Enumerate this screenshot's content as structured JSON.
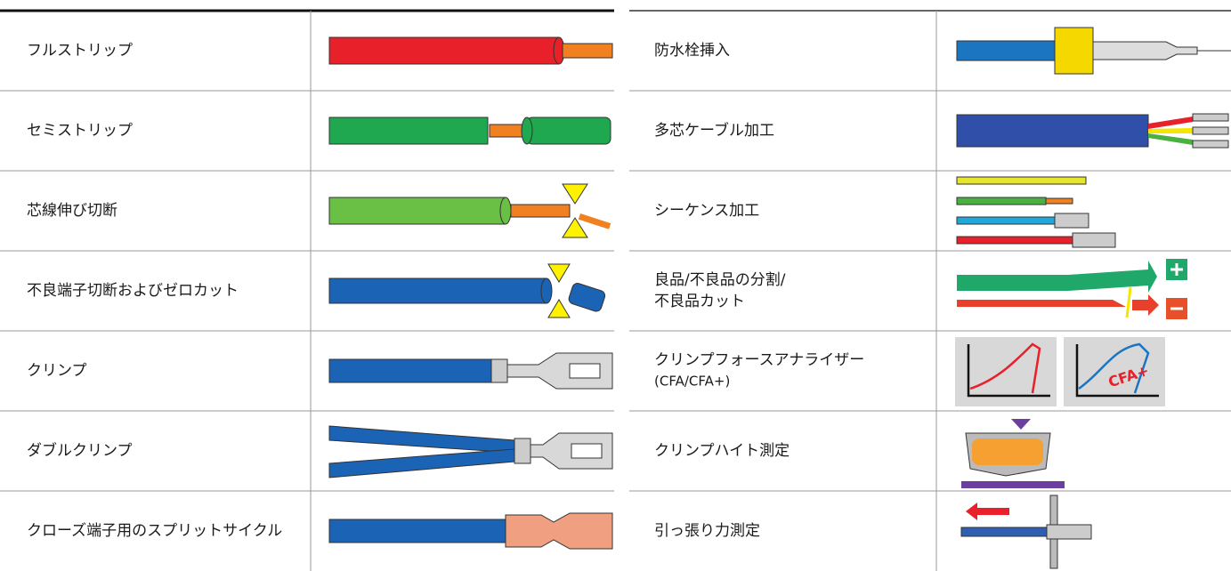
{
  "left": {
    "rows": [
      "フルストリップ",
      "セミストリップ",
      "芯線伸び切断",
      "不良端子切断およびゼロカット",
      "クリンプ",
      "ダブルクリンプ",
      "クローズ端子用のスプリットサイクル"
    ]
  },
  "right": {
    "rows": [
      [
        "防水栓挿入"
      ],
      [
        "多芯ケーブル加工"
      ],
      [
        "シーケンス加工"
      ],
      [
        "良品/不良品の分割/",
        "不良品カット"
      ],
      [
        "クリンプフォースアナライザー",
        "(CFA/CFA+)"
      ],
      [
        "クリンプハイト測定"
      ],
      [
        "引っ張り力測定"
      ]
    ],
    "cfa_badge": "CFA+"
  }
}
